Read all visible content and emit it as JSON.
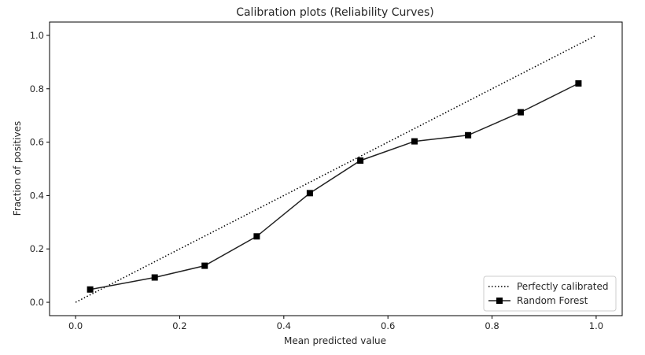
{
  "chart_data": {
    "type": "line",
    "title": "Calibration plots (Reliability Curves)",
    "xlabel": "Mean predicted value",
    "ylabel": "Fraction of positives",
    "xlim": [
      -0.05,
      1.05
    ],
    "ylim": [
      -0.05,
      1.05
    ],
    "xticks": [
      0.0,
      0.2,
      0.4,
      0.6,
      0.8,
      1.0
    ],
    "yticks": [
      0.0,
      0.2,
      0.4,
      0.6,
      0.8,
      1.0
    ],
    "x_tick_labels": [
      "0.0",
      "0.2",
      "0.4",
      "0.6",
      "0.8",
      "1.0"
    ],
    "y_tick_labels": [
      "0.0",
      "0.2",
      "0.4",
      "0.6",
      "0.8",
      "1.0"
    ],
    "grid": false,
    "legend_position": "bottom-right",
    "series": [
      {
        "name": "Perfectly calibrated",
        "style": "dotted",
        "color": "#000000",
        "x": [
          0.0,
          1.0
        ],
        "y": [
          0.0,
          1.0
        ]
      },
      {
        "name": "Random Forest",
        "style": "solid-square-markers",
        "color": "#000000",
        "x": [
          0.028,
          0.152,
          0.248,
          0.348,
          0.45,
          0.547,
          0.651,
          0.754,
          0.855,
          0.966
        ],
        "y": [
          0.048,
          0.093,
          0.137,
          0.247,
          0.409,
          0.531,
          0.603,
          0.626,
          0.712,
          0.82
        ]
      }
    ]
  }
}
